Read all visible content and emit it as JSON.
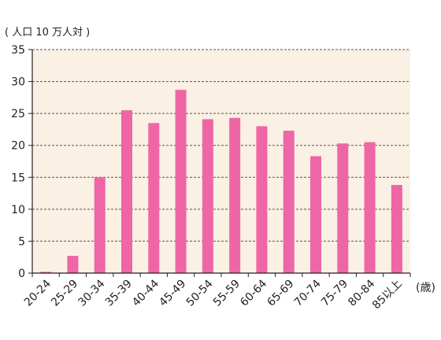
{
  "chart_data": {
    "type": "bar",
    "ylabel": "( 人口 10 万人対 )",
    "xlabel": "(歳)",
    "categories": [
      "20-24",
      "25-29",
      "30-34",
      "35-39",
      "40-44",
      "45-49",
      "50-54",
      "55-59",
      "60-64",
      "65-69",
      "70-74",
      "75-79",
      "80-84",
      "85以上"
    ],
    "values": [
      0.2,
      2.7,
      15.0,
      25.5,
      23.5,
      28.7,
      24.1,
      24.3,
      23.0,
      22.3,
      18.3,
      20.3,
      20.5,
      13.8
    ],
    "ylim": [
      0,
      35
    ],
    "yticks": [
      0,
      5,
      10,
      15,
      20,
      25,
      30,
      35
    ],
    "grid": true,
    "bar_color": "#ee66a6",
    "plot_background": "#fbf0e4"
  }
}
